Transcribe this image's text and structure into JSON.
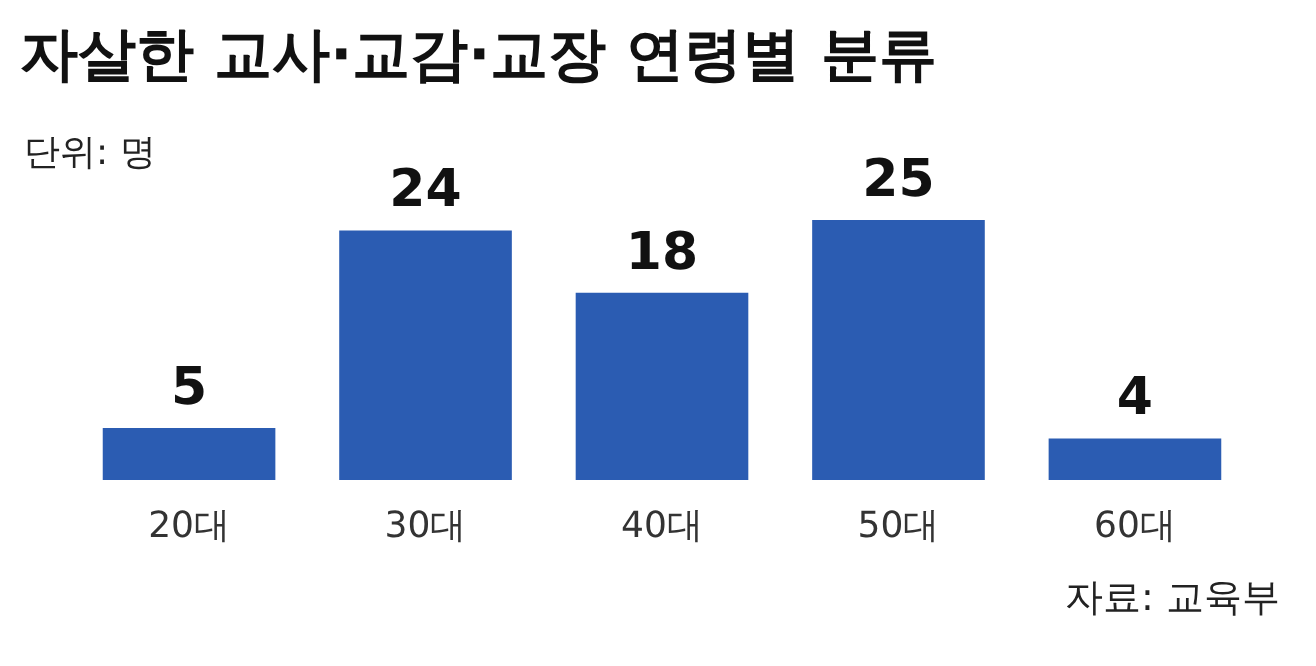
{
  "chart_data": {
    "type": "bar",
    "title": "자살한 교사·교감·교장 연령별 분류",
    "subtitle": "단위: 명",
    "categories": [
      "20대",
      "30대",
      "40대",
      "50대",
      "60대"
    ],
    "values": [
      5,
      24,
      18,
      25,
      4
    ],
    "color": "#2b5cb2",
    "data_labels": true,
    "annotations": [
      "자료: 교육부"
    ]
  }
}
